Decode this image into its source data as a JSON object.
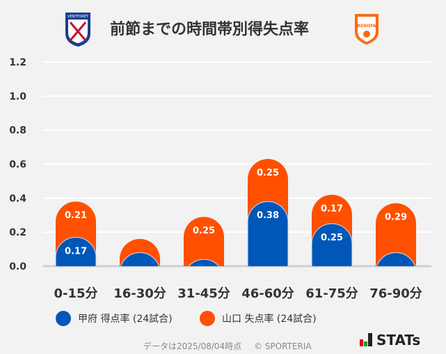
{
  "chart_data": {
    "type": "bar",
    "stacked": true,
    "title": "前節までの時間帯別得失点率",
    "categories": [
      "0-15分",
      "16-30分",
      "31-45分",
      "46-60分",
      "61-75分",
      "76-90分"
    ],
    "series": [
      {
        "name": "甲府 得点率 (24試合)",
        "color": "#0057b8",
        "values": [
          0.17,
          0.08,
          0.04,
          0.38,
          0.25,
          0.08
        ],
        "labels": [
          "0.17",
          "",
          "",
          "0.38",
          "0.25",
          ""
        ]
      },
      {
        "name": "山口 失点率 (24試合)",
        "color": "#ff5000",
        "values": [
          0.21,
          0.08,
          0.25,
          0.25,
          0.17,
          0.29
        ],
        "labels": [
          "0.21",
          "",
          "0.25",
          "0.25",
          "0.17",
          "0.29"
        ]
      }
    ],
    "yticks": [
      "0.0",
      "0.2",
      "0.4",
      "0.6",
      "0.8",
      "1.0",
      "1.2"
    ],
    "ylim": [
      0,
      1.2
    ],
    "grid": true,
    "legend": "bottom"
  },
  "logos": {
    "left": "VENTFORET KOFU",
    "right": "RENOFA"
  },
  "footer": {
    "note": "データは2025/08/04時点",
    "copyright": "© SPORTERIA",
    "brand": "STATs"
  }
}
